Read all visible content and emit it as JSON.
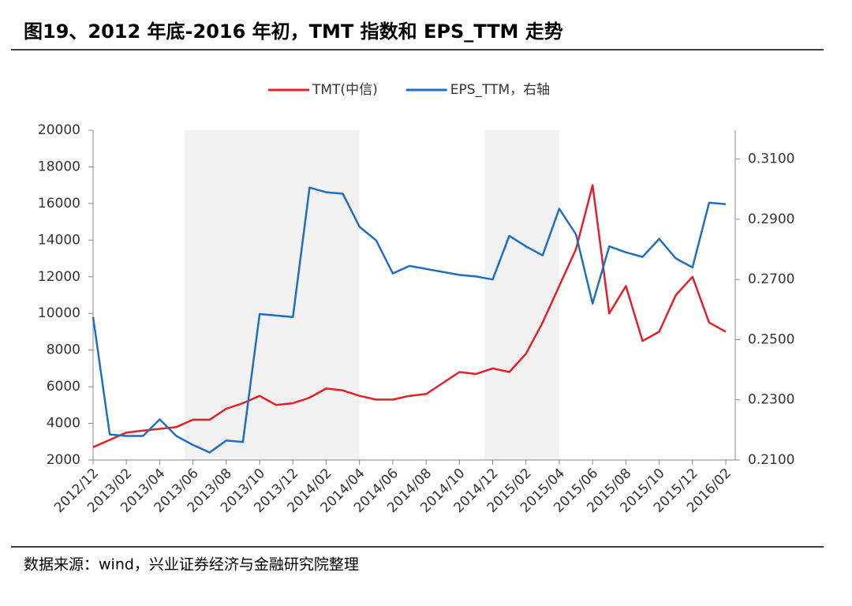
{
  "chart_data": {
    "type": "line",
    "title": "图19、2012 年底-2016 年初，TMT 指数和 EPS_TTM 走势",
    "source": "数据来源：wind，兴业证券经济与金融研究院整理",
    "categories": [
      "2012/12",
      null,
      "2013/02",
      null,
      "2013/04",
      null,
      "2013/06",
      null,
      "2013/08",
      null,
      "2013/10",
      null,
      "2013/12",
      null,
      "2014/02",
      null,
      "2014/04",
      null,
      "2014/06",
      null,
      "2014/08",
      null,
      "2014/10",
      null,
      "2014/12",
      null,
      "2015/02",
      null,
      "2015/04",
      null,
      "2015/06",
      null,
      "2015/08",
      null,
      "2015/10",
      null,
      "2015/12",
      null,
      "2016/02"
    ],
    "series": [
      {
        "name": "TMT(中信)",
        "color": "#e3202a",
        "values": [
          2700,
          3100,
          3500,
          3600,
          3700,
          3800,
          4200,
          4200,
          4800,
          5100,
          5500,
          5000,
          5100,
          5400,
          5900,
          5800,
          5500,
          5300,
          5300,
          5500,
          5600,
          6200,
          6800,
          6700,
          7000,
          6800,
          7800,
          9500,
          11500,
          13500,
          17000,
          10000,
          11500,
          8500,
          9000,
          11000,
          12000,
          9500,
          9000
        ]
      },
      {
        "name": "EPS_TTM，右轴",
        "color": "#1f6fbf",
        "axis": "y2",
        "values": [
          0.2575,
          0.2185,
          0.218,
          0.218,
          0.2235,
          0.218,
          0.215,
          0.2125,
          0.2165,
          0.216,
          0.2585,
          0.258,
          0.2575,
          0.3005,
          0.299,
          0.2985,
          0.2875,
          0.283,
          0.272,
          0.2745,
          0.2735,
          0.2725,
          0.2715,
          0.271,
          0.27,
          0.2845,
          0.281,
          0.278,
          0.2935,
          0.285,
          0.262,
          0.281,
          0.279,
          0.2775,
          0.2835,
          0.277,
          0.274,
          0.2955,
          0.295
        ]
      }
    ],
    "shaded_ranges": [
      {
        "from": "2013/06",
        "to": "2014/04"
      },
      {
        "from": "2014/12",
        "to": "2015/04"
      }
    ],
    "ylim": [
      2000,
      20000
    ],
    "yticks": [
      2000,
      4000,
      6000,
      8000,
      10000,
      12000,
      14000,
      16000,
      18000,
      20000
    ],
    "y2lim": [
      0.21,
      0.3196
    ],
    "y2ticks": [
      {
        "value": 0.21,
        "label": "0.2100"
      },
      {
        "value": 0.23,
        "label": "0.2300"
      },
      {
        "value": 0.25,
        "label": "0.2500"
      },
      {
        "value": 0.27,
        "label": "0.2700"
      },
      {
        "value": 0.29,
        "label": "0.2900"
      },
      {
        "value": 0.31,
        "label": "0.3100"
      }
    ],
    "legend": "top"
  }
}
